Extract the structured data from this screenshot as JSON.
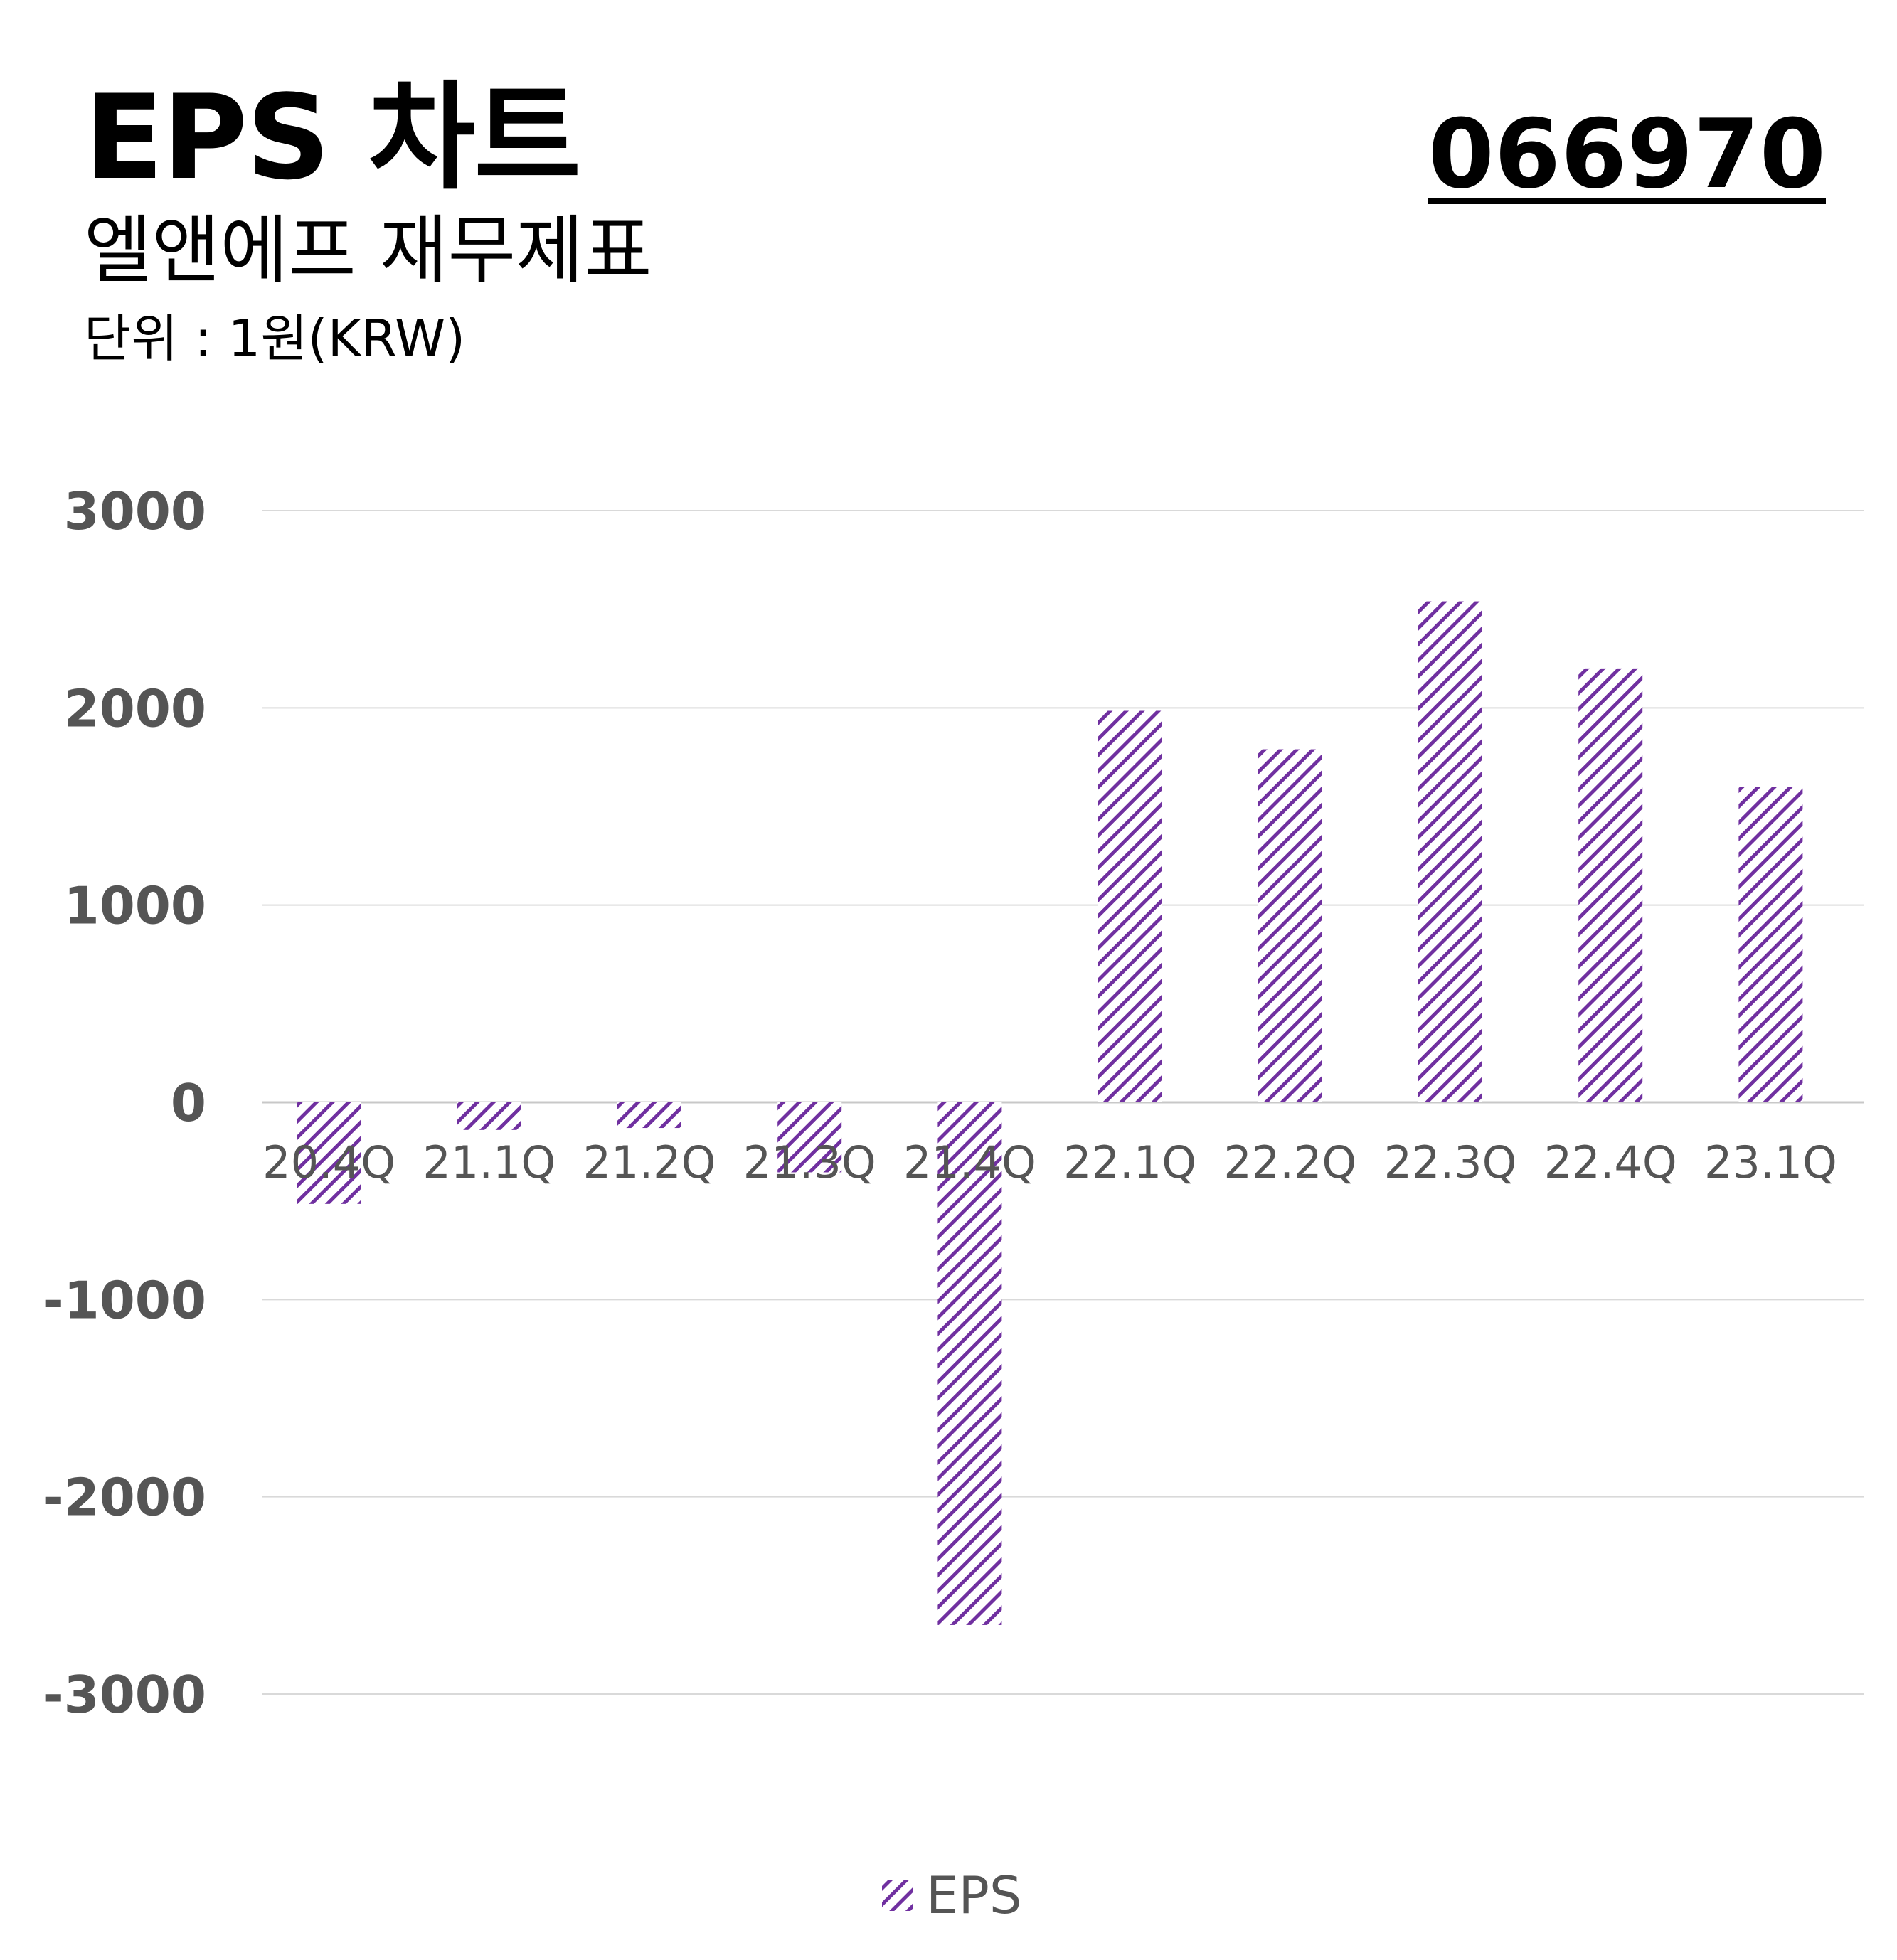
{
  "header": {
    "title": "EPS 차트",
    "subtitle": "엘앤에프 재무제표",
    "unit": "단위 : 1원(KRW)",
    "ticker": "066970"
  },
  "colors": {
    "bar": "#7030a0",
    "grid": "#d9d9d9",
    "axis_text": "#555555"
  },
  "chart_data": {
    "type": "bar",
    "title": "EPS 차트",
    "xlabel": "",
    "ylabel": "",
    "categories": [
      "20.4Q",
      "21.1Q",
      "21.2Q",
      "21.3Q",
      "21.4Q",
      "22.1Q",
      "22.2Q",
      "22.3Q",
      "22.4Q",
      "23.1Q"
    ],
    "series": [
      {
        "name": "EPS",
        "values": [
          -515,
          -140,
          -130,
          -355,
          -2650,
          1985,
          1790,
          2540,
          2200,
          1600
        ]
      }
    ],
    "ylim": [
      -3000,
      3000
    ],
    "yticks": [
      3000,
      2000,
      1000,
      0,
      -1000,
      -2000,
      -3000
    ],
    "grid": true,
    "legend": "bottom",
    "legend_entries": [
      "EPS"
    ]
  }
}
